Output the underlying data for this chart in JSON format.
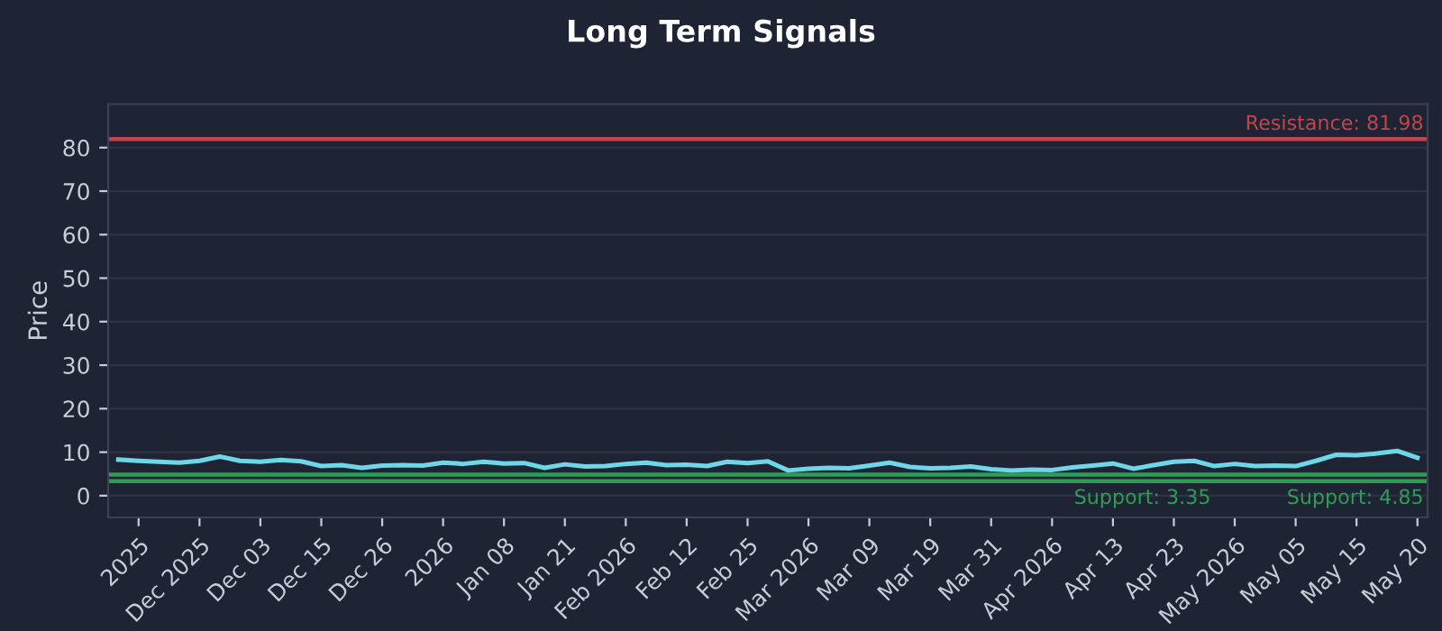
{
  "chart_data": {
    "type": "line",
    "title": "Long Term Signals",
    "ylabel": "Price",
    "categories": [
      null,
      "2025",
      null,
      null,
      "Dec 2025",
      null,
      null,
      "Dec 03",
      null,
      null,
      "Dec 15",
      null,
      null,
      "Dec 26",
      null,
      null,
      "2026",
      null,
      null,
      "Jan 08",
      null,
      null,
      "Jan 21",
      null,
      null,
      "Feb 2026",
      null,
      null,
      "Feb 12",
      null,
      null,
      "Feb 25",
      null,
      null,
      "Mar 2026",
      null,
      null,
      "Mar 09",
      null,
      null,
      "Mar 19",
      null,
      null,
      "Mar 31",
      null,
      null,
      "Apr 2026",
      null,
      null,
      "Apr 13",
      null,
      null,
      "Apr 23",
      null,
      null,
      "May 2026",
      null,
      null,
      "May 05",
      null,
      null,
      "May 15",
      null,
      null,
      "May 20"
    ],
    "series": [
      {
        "color": "#6fd6e8",
        "values": [
          8.3,
          8.0,
          7.8,
          7.6,
          8.0,
          9.0,
          8.0,
          7.8,
          8.2,
          7.9,
          6.8,
          7.0,
          6.4,
          6.9,
          7.0,
          6.9,
          7.6,
          7.3,
          7.8,
          7.4,
          7.5,
          6.4,
          7.2,
          6.7,
          6.8,
          7.3,
          7.6,
          7.0,
          7.1,
          6.8,
          7.8,
          7.5,
          7.9,
          5.8,
          6.2,
          6.4,
          6.3,
          6.9,
          7.6,
          6.6,
          6.3,
          6.4,
          6.7,
          6.1,
          5.8,
          6.0,
          5.9,
          6.5,
          6.9,
          7.4,
          6.2,
          7.0,
          7.8,
          8.0,
          6.8,
          7.3,
          6.8,
          6.9,
          6.8,
          8.0,
          9.4,
          9.3,
          9.7,
          10.3,
          8.7
        ]
      }
    ],
    "ylim": [
      -5,
      90
    ],
    "yticks": [
      0,
      10,
      20,
      30,
      40,
      50,
      60,
      70,
      80
    ],
    "grid": "y",
    "legend": false,
    "ref_lines": [
      {
        "axis": "y",
        "value": 81.98,
        "label": "Resistance: 81.98",
        "color": "#c0454f"
      },
      {
        "axis": "y",
        "value": 4.85,
        "label": "Support: 4.85",
        "color": "#2e9e55"
      },
      {
        "axis": "y",
        "value": 3.35,
        "label": "Support: 3.35",
        "color": "#2e9e55"
      }
    ]
  }
}
